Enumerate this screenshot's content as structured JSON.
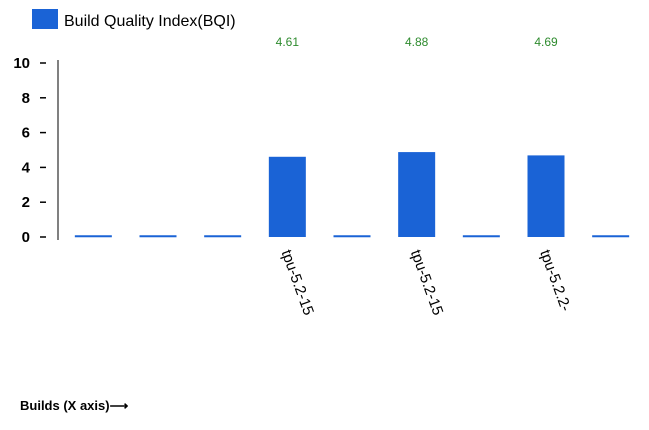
{
  "chart_data": {
    "type": "bar",
    "legend": {
      "label": "Build Quality Index(BQI)",
      "position": "top-left"
    },
    "xlabel": "Builds (X axis)⟶",
    "ylim": [
      0,
      10
    ],
    "yticks": [
      "0",
      "2",
      "4",
      "6",
      "8",
      "10"
    ],
    "categories": [
      "",
      "",
      "",
      "tpu-5.2-15",
      "",
      "tpu-5.2-15",
      "",
      "tpu-5.2.2-",
      ""
    ],
    "values": [
      0.1,
      0.1,
      0.1,
      4.61,
      0.1,
      4.88,
      0.1,
      4.69,
      0.1
    ],
    "data_labels": [
      "",
      "",
      "",
      "4.61",
      "",
      "4.88",
      "",
      "4.69",
      ""
    ],
    "colors": {
      "bar": "#1a63d6",
      "value_label": "#2e8b2e",
      "axis": "#000000"
    },
    "grid": false
  }
}
